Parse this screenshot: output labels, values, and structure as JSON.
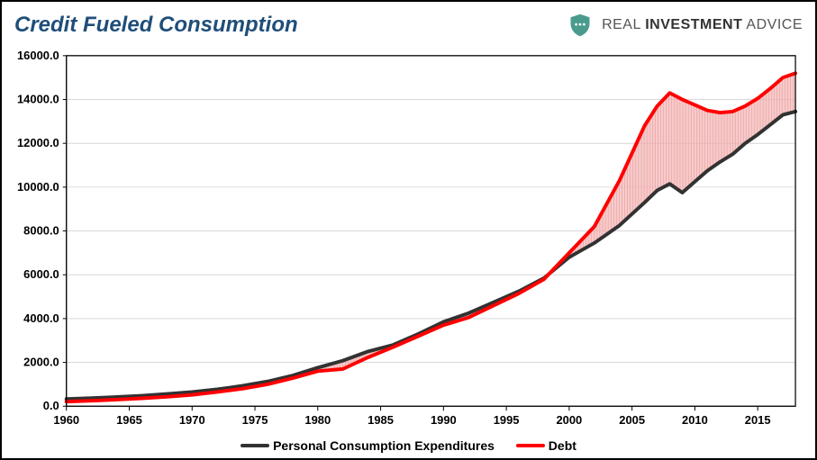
{
  "title": "Credit Fueled Consumption",
  "brand": {
    "word1": "REAL",
    "word2": "INVESTMENT",
    "word3": "ADVICE",
    "icon_color": "#4a9b8e"
  },
  "chart": {
    "type": "line",
    "background_color": "#ffffff",
    "plot_border_color": "#000000",
    "grid_color": "#c0c0c0",
    "axis_font_size": 13,
    "axis_font_weight": "bold",
    "axis_color": "#000000",
    "ylim": [
      0,
      16000
    ],
    "ytick_step": 2000,
    "yticks": [
      "0.0",
      "2000.0",
      "4000.0",
      "6000.0",
      "8000.0",
      "10000.0",
      "12000.0",
      "14000.0",
      "16000.0"
    ],
    "xlim": [
      1960,
      2018
    ],
    "xtick_step": 5,
    "xticks": [
      "1960",
      "1965",
      "1970",
      "1975",
      "1980",
      "1985",
      "1990",
      "1995",
      "2000",
      "2005",
      "2010",
      "2015"
    ],
    "band_fill": "#f4b3b3",
    "band_stroke": "#d86b6b",
    "series": [
      {
        "name": "Personal Consumption Expenditures",
        "color": "#323232",
        "line_width": 4,
        "data": [
          [
            1960,
            330
          ],
          [
            1962,
            370
          ],
          [
            1964,
            420
          ],
          [
            1966,
            480
          ],
          [
            1968,
            560
          ],
          [
            1970,
            650
          ],
          [
            1972,
            770
          ],
          [
            1974,
            930
          ],
          [
            1976,
            1130
          ],
          [
            1978,
            1400
          ],
          [
            1980,
            1760
          ],
          [
            1982,
            2080
          ],
          [
            1984,
            2500
          ],
          [
            1986,
            2800
          ],
          [
            1988,
            3300
          ],
          [
            1990,
            3850
          ],
          [
            1992,
            4250
          ],
          [
            1994,
            4750
          ],
          [
            1996,
            5250
          ],
          [
            1998,
            5850
          ],
          [
            2000,
            6800
          ],
          [
            2002,
            7450
          ],
          [
            2004,
            8250
          ],
          [
            2006,
            9300
          ],
          [
            2007,
            9850
          ],
          [
            2008,
            10150
          ],
          [
            2009,
            9750
          ],
          [
            2010,
            10250
          ],
          [
            2011,
            10750
          ],
          [
            2012,
            11150
          ],
          [
            2013,
            11500
          ],
          [
            2014,
            12000
          ],
          [
            2015,
            12400
          ],
          [
            2016,
            12850
          ],
          [
            2017,
            13300
          ],
          [
            2018,
            13450
          ]
        ]
      },
      {
        "name": "Debt",
        "color": "#ff0000",
        "line_width": 4,
        "data": [
          [
            1960,
            210
          ],
          [
            1962,
            250
          ],
          [
            1964,
            300
          ],
          [
            1966,
            360
          ],
          [
            1968,
            430
          ],
          [
            1970,
            520
          ],
          [
            1972,
            650
          ],
          [
            1974,
            800
          ],
          [
            1976,
            1000
          ],
          [
            1978,
            1280
          ],
          [
            1980,
            1600
          ],
          [
            1982,
            1700
          ],
          [
            1984,
            2230
          ],
          [
            1986,
            2700
          ],
          [
            1988,
            3200
          ],
          [
            1990,
            3700
          ],
          [
            1992,
            4050
          ],
          [
            1994,
            4600
          ],
          [
            1996,
            5150
          ],
          [
            1998,
            5800
          ],
          [
            2000,
            7000
          ],
          [
            2002,
            8200
          ],
          [
            2004,
            10300
          ],
          [
            2006,
            12800
          ],
          [
            2007,
            13700
          ],
          [
            2008,
            14300
          ],
          [
            2009,
            14000
          ],
          [
            2010,
            13750
          ],
          [
            2011,
            13500
          ],
          [
            2012,
            13400
          ],
          [
            2013,
            13450
          ],
          [
            2014,
            13700
          ],
          [
            2015,
            14050
          ],
          [
            2016,
            14500
          ],
          [
            2017,
            15000
          ],
          [
            2018,
            15200
          ]
        ]
      }
    ],
    "legend_font_size": 14
  }
}
